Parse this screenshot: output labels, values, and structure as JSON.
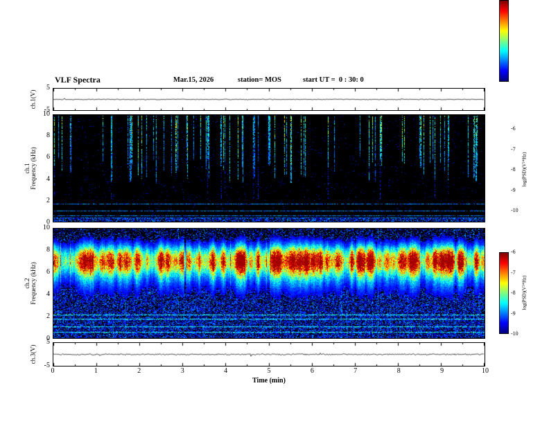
{
  "header": {
    "title": "VLF Spectra",
    "date": "Mar.15, 2026",
    "station": "station= MOS",
    "start_ut": "start UT =  0 : 30: 0"
  },
  "panels": {
    "ch1_waveform": {
      "label": "ch.1(V)",
      "ymax": "5",
      "ymin": "-5"
    },
    "ch1_spectrogram": {
      "label_line1": "ch.1",
      "label_line2": "Frequency (kHz)",
      "yticks": [
        0,
        2,
        4,
        6,
        8,
        10
      ]
    },
    "ch2_spectrogram": {
      "label_line1": "ch.2",
      "label_line2": "Frequency (kHz)",
      "yticks": [
        0,
        2,
        4,
        6,
        8,
        10
      ]
    },
    "ch3_waveform": {
      "label": "ch.3(V)",
      "ymax": "5",
      "ymin": "-5"
    }
  },
  "xaxis": {
    "label": "Time (min)",
    "ticks": [
      0,
      1,
      2,
      3,
      4,
      5,
      6,
      7,
      8,
      9,
      10
    ],
    "range": [
      0,
      10
    ]
  },
  "colorbar": {
    "label": "log(PSD)(V²*Hz)",
    "ticks": [
      "-6",
      "-7",
      "-8",
      "-9",
      "-10"
    ],
    "range": [
      -10,
      -6
    ]
  },
  "chart_data": [
    {
      "type": "line",
      "name": "ch1 voltage waveform",
      "title": "ch.1(V)",
      "xlabel": "Time (min)",
      "xlim": [
        0,
        10
      ],
      "ylabel": "ch.1(V)",
      "ylim": [
        -5,
        5
      ],
      "x": [
        0,
        10
      ],
      "y": [
        0,
        0
      ],
      "summary": "nearly constant trace at ~0 V for the full 10 minutes"
    },
    {
      "type": "heatmap",
      "name": "ch1 spectrogram",
      "xlabel": "Time (min)",
      "xlim": [
        0,
        10
      ],
      "ylabel": "ch.1 Frequency (kHz)",
      "ylim": [
        0,
        10
      ],
      "zlabel": "log(PSD)(V²*Hz)",
      "zlim": [
        -10,
        -6
      ],
      "background_level_log_psd": -10,
      "impulse_count": 72,
      "impulse_freq_top_khz": 10,
      "impulse_freq_bottom_khz": 3.5,
      "impulse_level_log_psd": [
        -8.5,
        -7
      ],
      "hlines_khz": [
        1.65,
        1.0,
        0.55,
        0.3
      ],
      "hline_level_log_psd": -8.8,
      "low_band_khz": [
        0,
        0.3
      ],
      "summary": "sparse impulsive vertical streaks (sferics) between ~3.5 and 10 kHz over a black (-10) background; weak horizontal carrier lines below 2 kHz"
    },
    {
      "type": "heatmap",
      "name": "ch2 spectrogram",
      "xlabel": "Time (min)",
      "xlim": [
        0,
        10
      ],
      "ylabel": "ch.2 Frequency (kHz)",
      "ylim": [
        0,
        10
      ],
      "zlabel": "log(PSD)(V²*Hz)",
      "zlim": [
        -10,
        -6
      ],
      "band_center_khz": 7.1,
      "band_sigma_khz": 1.15,
      "halo_center_khz": 6.4,
      "halo_sigma_khz": 2.3,
      "band_core_level_log_psd": -6,
      "halo_level_log_psd": -8,
      "hlines_khz": [
        2.1,
        1.7,
        1.0,
        0.5
      ],
      "summary": "continuous intense emission band ~5-9 kHz with red/yellow core near 6-8 kHz, green halo, blue broadband noise and faint carrier lines below 3 kHz"
    },
    {
      "type": "line",
      "name": "ch3 voltage waveform",
      "title": "ch.3(V)",
      "xlabel": "Time (min)",
      "xlim": [
        0,
        10
      ],
      "ylabel": "ch.3(V)",
      "ylim": [
        -5,
        5
      ],
      "x": [
        0,
        10
      ],
      "y": [
        0,
        0
      ],
      "summary": "nearly constant trace near 0 V with small fluctuations"
    }
  ]
}
